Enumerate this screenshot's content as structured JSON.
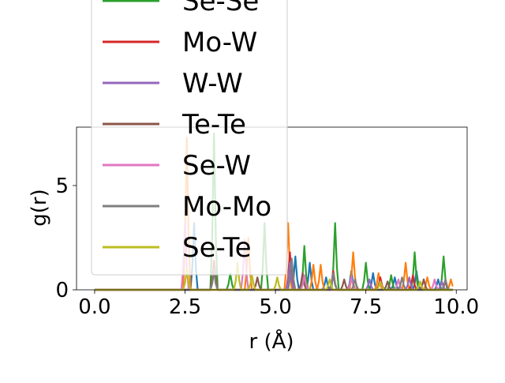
{
  "chart_data": {
    "type": "line",
    "xlabel": "r (Å)",
    "ylabel": "g(r)",
    "xlim": [
      -0.5,
      10.3
    ],
    "ylim": [
      0,
      7.8
    ],
    "xticks": [
      0.0,
      2.5,
      5.0,
      7.5,
      10.0
    ],
    "xtick_labels": [
      "0.0",
      "2.5",
      "5.0",
      "7.5",
      "10.0"
    ],
    "yticks": [
      0,
      5
    ],
    "ytick_labels": [
      "0",
      "5"
    ],
    "grid": false,
    "legend_placement": "upper-left (overflowing above axes)",
    "series": [
      {
        "name": "",
        "color": "#1f77b4",
        "peaks": [
          [
            2.75,
            3.2
          ],
          [
            3.3,
            1.0
          ],
          [
            5.55,
            1.6
          ],
          [
            5.95,
            1.3
          ],
          [
            6.4,
            0.6
          ],
          [
            7.1,
            0.9
          ],
          [
            7.7,
            0.8
          ],
          [
            8.3,
            0.6
          ],
          [
            8.9,
            0.9
          ],
          [
            9.5,
            0.5
          ]
        ]
      },
      {
        "name": "",
        "color": "#ff7f0e",
        "peaks": [
          [
            2.55,
            7.3
          ],
          [
            4.25,
            2.5
          ],
          [
            5.35,
            3.2
          ],
          [
            6.05,
            1.2
          ],
          [
            6.25,
            1.2
          ],
          [
            7.15,
            1.8
          ],
          [
            7.85,
            0.8
          ],
          [
            8.6,
            1.3
          ],
          [
            9.2,
            0.6
          ],
          [
            9.85,
            0.5
          ]
        ]
      },
      {
        "name": "Se-Se",
        "color": "#2ca02c",
        "peaks": [
          [
            3.3,
            7.5
          ],
          [
            3.75,
            0.8
          ],
          [
            4.7,
            3.2
          ],
          [
            5.8,
            2.1
          ],
          [
            6.65,
            3.2
          ],
          [
            7.5,
            1.3
          ],
          [
            8.2,
            0.7
          ],
          [
            8.85,
            1.8
          ],
          [
            9.65,
            1.6
          ]
        ]
      },
      {
        "name": "Mo-W",
        "color": "#d62728",
        "peaks": [
          [
            3.3,
            1.4
          ],
          [
            5.4,
            1.8
          ],
          [
            6.6,
            0.9
          ],
          [
            7.9,
            0.6
          ],
          [
            8.8,
            0.7
          ],
          [
            9.7,
            0.4
          ]
        ]
      },
      {
        "name": "W-W",
        "color": "#9467bd",
        "peaks": [
          [
            3.3,
            0.9
          ],
          [
            5.4,
            1.3
          ],
          [
            6.6,
            0.7
          ],
          [
            7.6,
            0.5
          ],
          [
            8.7,
            0.6
          ],
          [
            9.6,
            0.4
          ]
        ]
      },
      {
        "name": "Te-Te",
        "color": "#8c564b",
        "peaks": [
          [
            3.3,
            0.9
          ],
          [
            4.5,
            0.6
          ],
          [
            5.75,
            0.8
          ],
          [
            6.9,
            0.5
          ],
          [
            8.1,
            0.4
          ],
          [
            9.1,
            0.5
          ]
        ]
      },
      {
        "name": "Se-W",
        "color": "#e377c2",
        "peaks": [
          [
            2.5,
            3.2
          ],
          [
            4.15,
            2.4
          ],
          [
            5.8,
            0.7
          ],
          [
            7.1,
            0.6
          ],
          [
            8.4,
            0.5
          ],
          [
            9.4,
            0.5
          ]
        ]
      },
      {
        "name": "Mo-Mo",
        "color": "#7f7f7f",
        "peaks": [
          [
            3.3,
            1.0
          ],
          [
            5.45,
            1.5
          ],
          [
            6.6,
            0.8
          ],
          [
            7.2,
            0.5
          ],
          [
            8.5,
            0.6
          ],
          [
            9.7,
            0.5
          ]
        ]
      },
      {
        "name": "Se-Te",
        "color": "#bcbd22",
        "peaks": [
          [
            2.55,
            1.0
          ],
          [
            3.95,
            1.3
          ],
          [
            4.35,
            0.7
          ],
          [
            5.05,
            0.6
          ],
          [
            6.5,
            0.5
          ],
          [
            7.9,
            0.4
          ],
          [
            9.0,
            0.4
          ]
        ]
      }
    ]
  }
}
